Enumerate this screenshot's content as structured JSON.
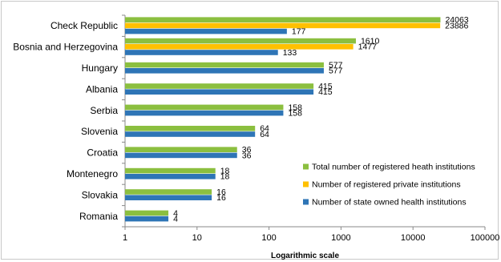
{
  "chart_data": {
    "type": "bar",
    "orientation": "horizontal",
    "x_scale": "log",
    "xlim": [
      1,
      100000
    ],
    "x_ticks": [
      "1",
      "10",
      "100",
      "1000",
      "10000",
      "100000"
    ],
    "xlabel": "Logarithmic scale",
    "grid": false,
    "legend_position": "right",
    "categories": [
      "Check Republic",
      "Bosnia and Herzegovina",
      "Hungary",
      "Albania",
      "Serbia",
      "Slovenia",
      "Croatia",
      "Montenegro",
      "Slovakia",
      "Romania"
    ],
    "series": [
      {
        "name": "Total number of registered heath institutions",
        "color": "#8bbf3f",
        "values": [
          24063,
          1610,
          577,
          415,
          158,
          64,
          36,
          18,
          16,
          4
        ]
      },
      {
        "name": "Number of registered private institutions",
        "color": "#ffc000",
        "values": [
          23886,
          1477,
          null,
          null,
          null,
          null,
          null,
          null,
          null,
          null
        ]
      },
      {
        "name": "Number of state owned health institutions",
        "color": "#2e75b6",
        "values": [
          177,
          133,
          577,
          415,
          158,
          64,
          36,
          18,
          16,
          4
        ]
      }
    ]
  }
}
